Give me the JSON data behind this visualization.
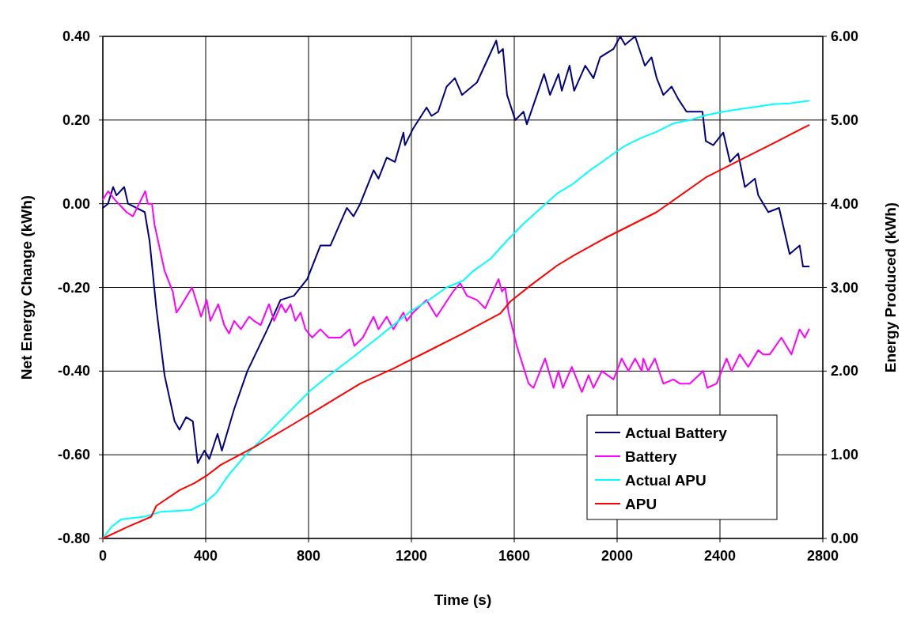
{
  "chart_data": {
    "type": "line",
    "xlabel": "Time (s)",
    "ylabel": "Net Energy Change (kWh)",
    "y2label": "Energy Produced (kWh)",
    "xlim": [
      0,
      2800
    ],
    "xticks": [
      0,
      400,
      800,
      1200,
      1600,
      2000,
      2400,
      2800
    ],
    "ylim": [
      -0.8,
      0.4
    ],
    "yticks": [
      {
        "value": -0.8,
        "label": "-0.80"
      },
      {
        "value": -0.6,
        "label": "-0.60"
      },
      {
        "value": -0.4,
        "label": "-0.40"
      },
      {
        "value": -0.2,
        "label": "-0.20"
      },
      {
        "value": 0,
        "label": "0.00"
      },
      {
        "value": 0.2,
        "label": "0.20"
      },
      {
        "value": 0.4,
        "label": "0.40"
      }
    ],
    "y2lim": [
      0,
      6
    ],
    "y2ticks": [
      {
        "value": 0,
        "label": "0.00"
      },
      {
        "value": 1,
        "label": "1.00"
      },
      {
        "value": 2,
        "label": "2.00"
      },
      {
        "value": 3,
        "label": "3.00"
      },
      {
        "value": 4,
        "label": "4.00"
      },
      {
        "value": 5,
        "label": "5.00"
      },
      {
        "value": 6,
        "label": "6.00"
      }
    ],
    "grid": true,
    "legend": "bottom right",
    "line_style": "solid",
    "marker": "none",
    "series": [
      {
        "name": "Actual Battery",
        "color": "#000080",
        "x": [
          0,
          20,
          40,
          53,
          83,
          98,
          163,
          182,
          208,
          240,
          279,
          298,
          324,
          350,
          369,
          395,
          414,
          446,
          463,
          511,
          562,
          640,
          691,
          743,
          795,
          846,
          885,
          949,
          975,
          1001,
          1053,
          1072,
          1104,
          1136,
          1169,
          1175,
          1207,
          1259,
          1278,
          1304,
          1337,
          1369,
          1397,
          1455,
          1530,
          1539,
          1556,
          1572,
          1604,
          1636,
          1649,
          1716,
          1739,
          1772,
          1785,
          1815,
          1833,
          1876,
          1908,
          1934,
          1986,
          2012,
          2031,
          2070,
          2108,
          2134,
          2154,
          2180,
          2212,
          2238,
          2270,
          2296,
          2332,
          2345,
          2374,
          2413,
          2439,
          2471,
          2497,
          2536,
          2549,
          2588,
          2630,
          2671,
          2710,
          2723,
          2746
        ],
        "values": [
          -0.01,
          0,
          0.04,
          0.02,
          0.04,
          0,
          -0.02,
          -0.09,
          -0.25,
          -0.41,
          -0.52,
          -0.54,
          -0.51,
          -0.52,
          -0.62,
          -0.59,
          -0.61,
          -0.55,
          -0.59,
          -0.49,
          -0.4,
          -0.3,
          -0.23,
          -0.22,
          -0.18,
          -0.1,
          -0.1,
          -0.01,
          -0.03,
          0,
          0.08,
          0.06,
          0.11,
          0.1,
          0.17,
          0.14,
          0.18,
          0.23,
          0.21,
          0.22,
          0.28,
          0.3,
          0.26,
          0.29,
          0.39,
          0.36,
          0.37,
          0.26,
          0.2,
          0.22,
          0.19,
          0.31,
          0.26,
          0.31,
          0.27,
          0.33,
          0.27,
          0.33,
          0.3,
          0.35,
          0.37,
          0.4,
          0.38,
          0.4,
          0.33,
          0.35,
          0.3,
          0.26,
          0.28,
          0.25,
          0.22,
          0.22,
          0.22,
          0.15,
          0.14,
          0.17,
          0.1,
          0.12,
          0.04,
          0.06,
          0.02,
          -0.02,
          -0.01,
          -0.12,
          -0.1,
          -0.15,
          -0.15
        ]
      },
      {
        "name": "Battery",
        "color": "#ff00ff",
        "x": [
          0,
          21,
          46,
          92,
          117,
          165,
          175,
          191,
          201,
          240,
          272,
          286,
          298,
          347,
          382,
          404,
          418,
          449,
          472,
          491,
          511,
          537,
          569,
          588,
          614,
          646,
          666,
          694,
          711,
          730,
          749,
          769,
          788,
          814,
          846,
          878,
          924,
          960,
          978,
          1011,
          1053,
          1072,
          1104,
          1130,
          1169,
          1182,
          1207,
          1259,
          1298,
          1362,
          1390,
          1416,
          1455,
          1487,
          1539,
          1552,
          1565,
          1578,
          1610,
          1656,
          1675,
          1720,
          1753,
          1772,
          1789,
          1824,
          1863,
          1889,
          1908,
          1941,
          1986,
          2018,
          2044,
          2070,
          2096,
          2102,
          2121,
          2147,
          2180,
          2219,
          2244,
          2283,
          2335,
          2351,
          2387,
          2426,
          2445,
          2477,
          2510,
          2549,
          2568,
          2594,
          2639,
          2678,
          2710,
          2730,
          2746
        ],
        "values": [
          0.01,
          0.03,
          0.01,
          -0.02,
          -0.03,
          0.03,
          0,
          0,
          -0.05,
          -0.16,
          -0.21,
          -0.26,
          -0.25,
          -0.2,
          -0.27,
          -0.23,
          -0.28,
          -0.24,
          -0.29,
          -0.31,
          -0.28,
          -0.3,
          -0.27,
          -0.28,
          -0.29,
          -0.24,
          -0.28,
          -0.24,
          -0.26,
          -0.24,
          -0.28,
          -0.26,
          -0.3,
          -0.32,
          -0.3,
          -0.32,
          -0.32,
          -0.3,
          -0.34,
          -0.32,
          -0.27,
          -0.3,
          -0.27,
          -0.3,
          -0.26,
          -0.28,
          -0.26,
          -0.23,
          -0.27,
          -0.21,
          -0.19,
          -0.22,
          -0.23,
          -0.25,
          -0.18,
          -0.21,
          -0.2,
          -0.26,
          -0.34,
          -0.43,
          -0.44,
          -0.37,
          -0.44,
          -0.4,
          -0.44,
          -0.39,
          -0.45,
          -0.41,
          -0.44,
          -0.4,
          -0.42,
          -0.37,
          -0.4,
          -0.37,
          -0.4,
          -0.37,
          -0.4,
          -0.37,
          -0.43,
          -0.42,
          -0.43,
          -0.43,
          -0.4,
          -0.44,
          -0.43,
          -0.37,
          -0.4,
          -0.36,
          -0.39,
          -0.35,
          -0.36,
          -0.36,
          -0.32,
          -0.36,
          -0.3,
          -0.32,
          -0.3
        ]
      },
      {
        "name": "Actual APU",
        "color": "#00ffff",
        "axis": "y2",
        "x": [
          0,
          34,
          72,
          163,
          227,
          343,
          395,
          440,
          485,
          550,
          640,
          743,
          808,
          872,
          949,
          1066,
          1130,
          1195,
          1259,
          1337,
          1401,
          1442,
          1507,
          1572,
          1636,
          1701,
          1766,
          1830,
          1895,
          1960,
          2024,
          2089,
          2154,
          2219,
          2283,
          2348,
          2413,
          2477,
          2542,
          2607,
          2671,
          2746
        ],
        "values": [
          0,
          0.14,
          0.23,
          0.26,
          0.32,
          0.34,
          0.42,
          0.54,
          0.74,
          0.98,
          1.25,
          1.57,
          1.77,
          1.93,
          2.11,
          2.39,
          2.55,
          2.71,
          2.83,
          3.0,
          3.08,
          3.2,
          3.34,
          3.56,
          3.76,
          3.94,
          4.12,
          4.24,
          4.4,
          4.54,
          4.68,
          4.78,
          4.86,
          4.96,
          5.0,
          5.06,
          5.1,
          5.13,
          5.16,
          5.19,
          5.2,
          5.23
        ]
      },
      {
        "name": "APU",
        "color": "#ff0000",
        "axis": "y2",
        "x": [
          0,
          98,
          188,
          208,
          300,
          356,
          408,
          459,
          588,
          743,
          872,
          1001,
          1130,
          1259,
          1401,
          1546,
          1584,
          1662,
          1766,
          1830,
          1960,
          2154,
          2348,
          2477,
          2607,
          2746
        ],
        "values": [
          0,
          0.14,
          0.26,
          0.39,
          0.58,
          0.66,
          0.76,
          0.88,
          1.09,
          1.37,
          1.61,
          1.85,
          2.03,
          2.23,
          2.45,
          2.69,
          2.83,
          3.02,
          3.26,
          3.38,
          3.6,
          3.9,
          4.32,
          4.52,
          4.72,
          4.94
        ]
      }
    ]
  }
}
